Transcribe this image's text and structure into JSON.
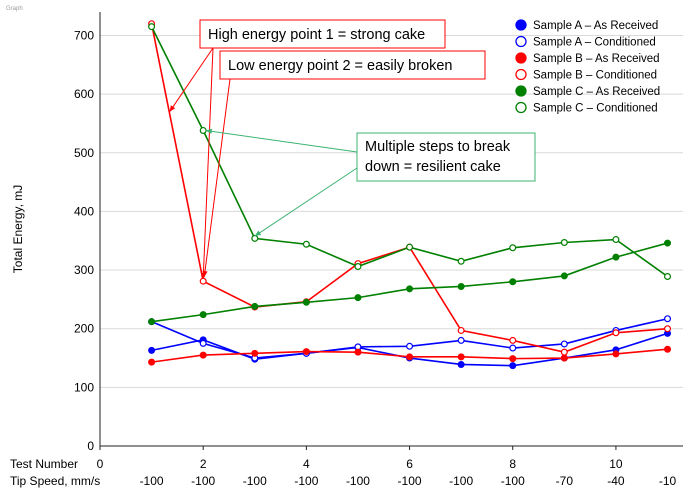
{
  "corner_label": "Graph",
  "chart_data": {
    "type": "line",
    "title": "",
    "ylabel": "Total Energy, mJ",
    "ylim": [
      0,
      740
    ],
    "yticks": [
      0,
      100,
      200,
      300,
      400,
      500,
      600,
      700
    ],
    "xlim": [
      0,
      11.3
    ],
    "x_row_labels": [
      "Test Number",
      "Tip Speed, mm/s"
    ],
    "test_number_ticks": [
      0,
      2,
      4,
      6,
      8,
      10
    ],
    "tip_speed_positions": [
      1,
      2,
      3,
      4,
      5,
      6,
      7,
      8,
      9,
      10,
      11
    ],
    "tip_speed_labels": [
      "-100",
      "-100",
      "-100",
      "-100",
      "-100",
      "-100",
      "-100",
      "-100",
      "-70",
      "-40",
      "-10"
    ],
    "x": [
      1,
      2,
      3,
      4,
      5,
      6,
      7,
      8,
      9,
      10,
      11
    ],
    "legend_position": "top-right",
    "series": [
      {
        "name": "Sample A – As Received",
        "color": "#0000ff",
        "filled": true,
        "values": [
          163,
          181,
          148,
          158,
          168,
          150,
          139,
          137,
          150,
          164,
          192
        ]
      },
      {
        "name": "Sample A – Conditioned",
        "color": "#0000ff",
        "filled": false,
        "values": [
          212,
          175,
          150,
          158,
          169,
          170,
          180,
          167,
          174,
          197,
          217
        ]
      },
      {
        "name": "Sample B – As Received",
        "color": "#ff0000",
        "filled": true,
        "values": [
          143,
          155,
          158,
          161,
          160,
          152,
          152,
          149,
          150,
          157,
          165
        ]
      },
      {
        "name": "Sample B – Conditioned",
        "color": "#ff0000",
        "filled": false,
        "values": [
          720,
          281,
          237,
          246,
          311,
          339,
          197,
          180,
          160,
          193,
          200
        ]
      },
      {
        "name": "Sample C – As Received",
        "color": "#008000",
        "filled": true,
        "values": [
          212,
          224,
          238,
          245,
          253,
          268,
          272,
          280,
          290,
          322,
          346
        ]
      },
      {
        "name": "Sample C – Conditioned",
        "color": "#008000",
        "filled": false,
        "values": [
          715,
          538,
          354,
          344,
          306,
          339,
          315,
          338,
          347,
          352,
          289
        ]
      }
    ],
    "annotations": [
      {
        "lines": [
          "High energy point 1 = strong cake"
        ],
        "border_color": "#ff0000",
        "line_color": "#ff0000",
        "arrow_targets": [
          [
            1.35,
            570
          ],
          [
            2,
            285
          ]
        ]
      },
      {
        "lines": [
          "Low energy point 2 = easily broken"
        ],
        "border_color": "#ff0000",
        "line_color": "#ff0000",
        "arrow_targets": [
          [
            2.02,
            288
          ]
        ]
      },
      {
        "lines": [
          "Multiple steps to break",
          "down = resilient cake"
        ],
        "border_color": "#3cb371",
        "line_color": "#3cb371",
        "arrow_targets": [
          [
            2.05,
            538
          ],
          [
            3.0,
            358
          ]
        ]
      }
    ]
  }
}
